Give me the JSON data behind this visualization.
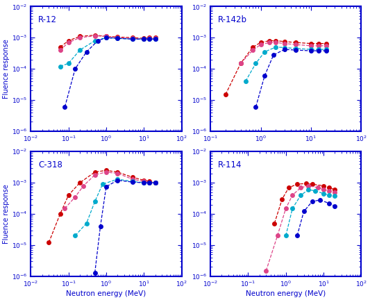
{
  "subplots": [
    {
      "title": "R-12",
      "xlim": [
        0.01,
        100
      ],
      "ylim": [
        1e-06,
        0.01
      ],
      "xlabel_visible": false,
      "ylabel_visible": true,
      "series": [
        {
          "color": "#cc0000",
          "x": [
            0.06,
            0.1,
            0.2,
            0.5,
            1.0,
            2.0,
            5.0,
            10.0,
            14.0,
            20.0
          ],
          "y": [
            0.0005,
            0.0008,
            0.0011,
            0.0012,
            0.0011,
            0.00105,
            0.001,
            0.00095,
            0.001,
            0.001
          ]
        },
        {
          "color": "#dd4488",
          "x": [
            0.06,
            0.1,
            0.2,
            0.5,
            1.0,
            2.0,
            5.0,
            10.0,
            14.0,
            20.0
          ],
          "y": [
            0.0004,
            0.0007,
            0.001,
            0.00115,
            0.0011,
            0.001,
            0.00095,
            0.0009,
            0.00095,
            0.00095
          ]
        },
        {
          "color": "#00aacc",
          "x": [
            0.06,
            0.1,
            0.2,
            0.5,
            1.0,
            2.0,
            5.0,
            10.0,
            14.0,
            20.0
          ],
          "y": [
            0.00012,
            0.00015,
            0.0004,
            0.0008,
            0.001,
            0.00095,
            0.0009,
            0.0009,
            0.0009,
            0.0009
          ]
        },
        {
          "color": "#0000cc",
          "x": [
            0.08,
            0.15,
            0.3,
            0.6,
            1.0,
            2.0,
            5.0,
            10.0,
            14.0,
            20.0
          ],
          "y": [
            6e-06,
            0.0001,
            0.00035,
            0.0008,
            0.001,
            0.00095,
            0.0009,
            0.0009,
            0.0009,
            0.0009
          ]
        }
      ]
    },
    {
      "title": "R-142b",
      "xlim": [
        0.1,
        100
      ],
      "ylim": [
        1e-06,
        0.01
      ],
      "xlabel_visible": false,
      "ylabel_visible": false,
      "series": [
        {
          "color": "#cc0000",
          "x": [
            0.2,
            0.4,
            0.7,
            1.0,
            1.5,
            2.0,
            3.0,
            5.0,
            10.0,
            14.0,
            20.0
          ],
          "y": [
            1.5e-05,
            0.00015,
            0.0005,
            0.0007,
            0.0008,
            0.0008,
            0.00075,
            0.0007,
            0.00065,
            0.00065,
            0.00065
          ]
        },
        {
          "color": "#dd4488",
          "x": [
            0.4,
            0.7,
            1.0,
            1.5,
            2.0,
            3.0,
            5.0,
            10.0,
            14.0,
            20.0
          ],
          "y": [
            0.00015,
            0.0004,
            0.0006,
            0.0007,
            0.0007,
            0.00065,
            0.0006,
            0.00055,
            0.00055,
            0.00055
          ]
        },
        {
          "color": "#00aacc",
          "x": [
            0.5,
            0.8,
            1.2,
            2.0,
            3.0,
            5.0,
            10.0,
            14.0,
            20.0
          ],
          "y": [
            4e-05,
            0.00015,
            0.00035,
            0.0005,
            0.00048,
            0.00045,
            0.00042,
            0.00042,
            0.00042
          ]
        },
        {
          "color": "#0000cc",
          "x": [
            0.8,
            1.2,
            1.8,
            3.0,
            5.0,
            10.0,
            14.0,
            20.0
          ],
          "y": [
            6e-06,
            6e-05,
            0.00028,
            0.00042,
            0.0004,
            0.00038,
            0.00038,
            0.00038
          ]
        }
      ]
    },
    {
      "title": "C-318",
      "xlim": [
        0.01,
        100
      ],
      "ylim": [
        1e-06,
        0.01
      ],
      "xlabel_visible": true,
      "ylabel_visible": true,
      "series": [
        {
          "color": "#cc0000",
          "x": [
            0.03,
            0.06,
            0.1,
            0.2,
            0.5,
            1.0,
            2.0,
            5.0,
            10.0,
            14.0,
            20.0
          ],
          "y": [
            1.2e-05,
            0.0001,
            0.0004,
            0.001,
            0.0022,
            0.0025,
            0.0022,
            0.0015,
            0.0012,
            0.0011,
            0.001
          ]
        },
        {
          "color": "#dd4488",
          "x": [
            0.08,
            0.15,
            0.25,
            0.5,
            1.0,
            2.0,
            5.0,
            10.0,
            14.0,
            20.0
          ],
          "y": [
            0.00015,
            0.00035,
            0.0008,
            0.0018,
            0.0022,
            0.002,
            0.0013,
            0.0011,
            0.001,
            0.001
          ]
        },
        {
          "color": "#00aacc",
          "x": [
            0.15,
            0.3,
            0.5,
            0.8,
            2.0,
            5.0,
            10.0,
            14.0,
            20.0
          ],
          "y": [
            2e-05,
            5e-05,
            0.00025,
            0.0009,
            0.0013,
            0.0011,
            0.001,
            0.001,
            0.001
          ]
        },
        {
          "color": "#0000cc",
          "x": [
            0.5,
            0.7,
            1.0,
            2.0,
            5.0,
            10.0,
            14.0,
            20.0
          ],
          "y": [
            1.3e-06,
            4e-05,
            0.00075,
            0.0012,
            0.00105,
            0.001,
            0.001,
            0.001
          ]
        }
      ]
    },
    {
      "title": "R-114",
      "xlim": [
        0.01,
        100
      ],
      "ylim": [
        1e-06,
        0.01
      ],
      "xlabel_visible": true,
      "ylabel_visible": false,
      "series": [
        {
          "color": "#cc0000",
          "x": [
            0.5,
            0.8,
            1.2,
            2.0,
            3.5,
            5.0,
            10.0,
            14.0,
            20.0
          ],
          "y": [
            5e-05,
            0.0003,
            0.0007,
            0.0009,
            0.00095,
            0.0009,
            0.0008,
            0.0007,
            0.0006
          ]
        },
        {
          "color": "#dd4488",
          "x": [
            0.3,
            0.6,
            1.0,
            1.5,
            2.5,
            4.0,
            7.0,
            10.0,
            14.0,
            20.0
          ],
          "y": [
            1.5e-06,
            2e-05,
            0.00015,
            0.0004,
            0.0007,
            0.0008,
            0.0007,
            0.0006,
            0.00055,
            0.0005
          ]
        },
        {
          "color": "#00aacc",
          "x": [
            1.0,
            1.5,
            2.5,
            4.0,
            6.0,
            10.0,
            14.0,
            20.0
          ],
          "y": [
            2e-05,
            0.00015,
            0.0004,
            0.0006,
            0.00055,
            0.00045,
            0.0004,
            0.00038
          ]
        },
        {
          "color": "#0000cc",
          "x": [
            2.0,
            3.0,
            5.0,
            8.0,
            14.0,
            20.0
          ],
          "y": [
            2e-05,
            0.00012,
            0.00025,
            0.00028,
            0.00022,
            0.00018
          ]
        }
      ]
    }
  ],
  "ylabel": "Fluence response",
  "xlabel": "Neutron energy (MeV)",
  "spine_color": "#0000cc",
  "label_color": "#0000cc",
  "tick_color": "#0000cc",
  "title_color": "#0000cc",
  "fig_facecolor": "#ffffff",
  "ax_facecolor": "#ffffff"
}
